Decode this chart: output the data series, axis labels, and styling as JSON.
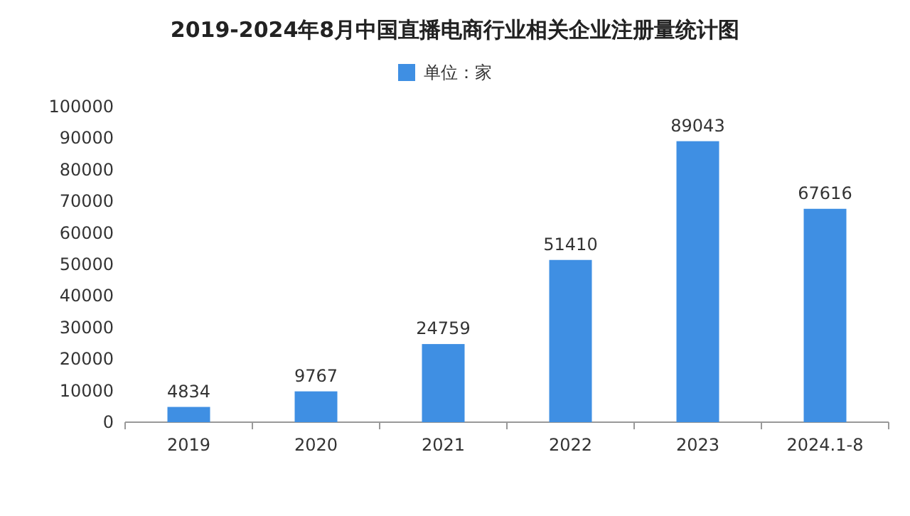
{
  "chart_data": {
    "type": "bar",
    "title": "2019-2024年8月中国直播电商行业相关企业注册量统计图",
    "categories": [
      "2019",
      "2020",
      "2021",
      "2022",
      "2023",
      "2024.1-8"
    ],
    "series": [
      {
        "name": "单位：家",
        "color": "#3f8fe3",
        "values": [
          4834,
          9767,
          24759,
          51410,
          89043,
          67616
        ]
      }
    ],
    "ylim": [
      0,
      100000
    ],
    "yticks": [
      0,
      10000,
      20000,
      30000,
      40000,
      50000,
      60000,
      70000,
      80000,
      90000,
      100000
    ],
    "data_labels": true,
    "legend": "top"
  }
}
